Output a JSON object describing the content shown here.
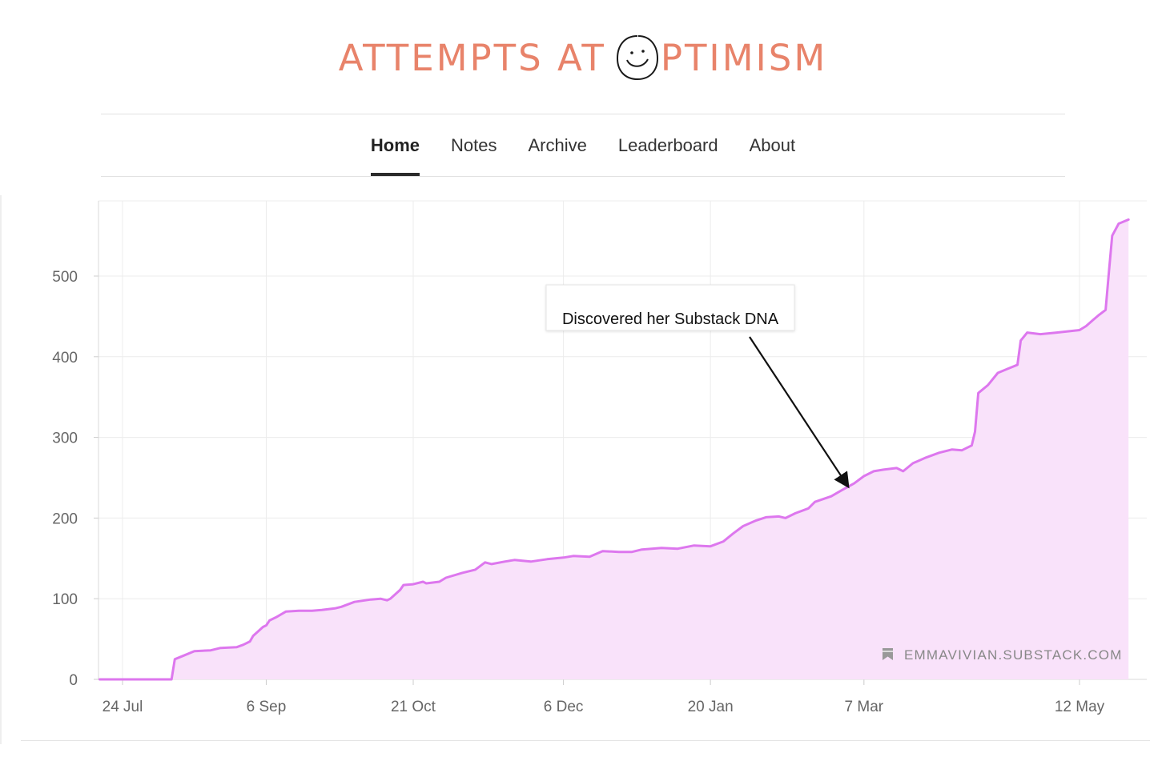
{
  "header": {
    "title_part1": "ATTEMPTS AT",
    "title_part2": "PTIMISM",
    "title_color": "#e8836a",
    "logo_icon": "smiley-face-icon"
  },
  "nav": {
    "items": [
      {
        "label": "Home",
        "active": true
      },
      {
        "label": "Notes",
        "active": false
      },
      {
        "label": "Archive",
        "active": false
      },
      {
        "label": "Leaderboard",
        "active": false
      },
      {
        "label": "About",
        "active": false
      }
    ]
  },
  "chart_data": {
    "type": "area",
    "title": "",
    "xlabel": "",
    "ylabel": "",
    "x_axis": {
      "type": "date",
      "range": [
        "2023-07-24",
        "2024-05-27"
      ],
      "ticks": [
        {
          "date": "2023-07-24",
          "label": "24 Jul"
        },
        {
          "date": "2023-09-06",
          "label": "6 Sep"
        },
        {
          "date": "2023-10-21",
          "label": "21 Oct"
        },
        {
          "date": "2023-12-06",
          "label": "6 Dec"
        },
        {
          "date": "2024-01-20",
          "label": "20 Jan"
        },
        {
          "date": "2024-03-07",
          "label": "7 Mar"
        },
        {
          "date": "2024-05-12",
          "label": "12 May"
        }
      ]
    },
    "y_axis": {
      "range": [
        0,
        595
      ],
      "ticks": [
        {
          "value": 0,
          "label": "0"
        },
        {
          "value": 100,
          "label": "100"
        },
        {
          "value": 200,
          "label": "200"
        },
        {
          "value": 300,
          "label": "300"
        },
        {
          "value": 400,
          "label": "400"
        },
        {
          "value": 500,
          "label": "500"
        }
      ]
    },
    "grid": true,
    "line_color": "#dd77ee",
    "fill_color": "#f9e2fa",
    "series": [
      {
        "points": [
          [
            "2023-07-17",
            0
          ],
          [
            "2023-08-08",
            0
          ],
          [
            "2023-08-09",
            25
          ],
          [
            "2023-08-12",
            30
          ],
          [
            "2023-08-15",
            35
          ],
          [
            "2023-08-20",
            36
          ],
          [
            "2023-08-23",
            39
          ],
          [
            "2023-08-28",
            40
          ],
          [
            "2023-08-30",
            43
          ],
          [
            "2023-09-01",
            47
          ],
          [
            "2023-09-02",
            54
          ],
          [
            "2023-09-05",
            65
          ],
          [
            "2023-09-06",
            67
          ],
          [
            "2023-09-07",
            73
          ],
          [
            "2023-09-09",
            77
          ],
          [
            "2023-09-12",
            84
          ],
          [
            "2023-09-16",
            85
          ],
          [
            "2023-09-20",
            85
          ],
          [
            "2023-09-23",
            86
          ],
          [
            "2023-09-27",
            88
          ],
          [
            "2023-09-29",
            90
          ],
          [
            "2023-10-03",
            96
          ],
          [
            "2023-10-08",
            99
          ],
          [
            "2023-10-11",
            100
          ],
          [
            "2023-10-13",
            98
          ],
          [
            "2023-10-14",
            100
          ],
          [
            "2023-10-17",
            111
          ],
          [
            "2023-10-18",
            117
          ],
          [
            "2023-10-21",
            118
          ],
          [
            "2023-10-24",
            121
          ],
          [
            "2023-10-25",
            119
          ],
          [
            "2023-10-29",
            121
          ],
          [
            "2023-10-31",
            126
          ],
          [
            "2023-11-05",
            132
          ],
          [
            "2023-11-09",
            136
          ],
          [
            "2023-11-12",
            145
          ],
          [
            "2023-11-14",
            143
          ],
          [
            "2023-11-18",
            146
          ],
          [
            "2023-11-21",
            148
          ],
          [
            "2023-11-26",
            146
          ],
          [
            "2023-12-01",
            149
          ],
          [
            "2023-12-06",
            151
          ],
          [
            "2023-12-09",
            153
          ],
          [
            "2023-12-14",
            152
          ],
          [
            "2023-12-18",
            159
          ],
          [
            "2023-12-23",
            158
          ],
          [
            "2023-12-27",
            158
          ],
          [
            "2023-12-30",
            161
          ],
          [
            "2024-01-05",
            163
          ],
          [
            "2024-01-10",
            162
          ],
          [
            "2024-01-15",
            166
          ],
          [
            "2024-01-20",
            165
          ],
          [
            "2024-01-24",
            171
          ],
          [
            "2024-01-27",
            181
          ],
          [
            "2024-01-30",
            190
          ],
          [
            "2024-02-03",
            197
          ],
          [
            "2024-02-06",
            201
          ],
          [
            "2024-02-10",
            202
          ],
          [
            "2024-02-12",
            200
          ],
          [
            "2024-02-15",
            206
          ],
          [
            "2024-02-19",
            212
          ],
          [
            "2024-02-21",
            220
          ],
          [
            "2024-02-26",
            227
          ],
          [
            "2024-02-29",
            234
          ],
          [
            "2024-03-04",
            243
          ],
          [
            "2024-03-07",
            252
          ],
          [
            "2024-03-10",
            258
          ],
          [
            "2024-03-13",
            260
          ],
          [
            "2024-03-17",
            262
          ],
          [
            "2024-03-19",
            258
          ],
          [
            "2024-03-22",
            268
          ],
          [
            "2024-03-26",
            275
          ],
          [
            "2024-03-30",
            281
          ],
          [
            "2024-04-03",
            285
          ],
          [
            "2024-04-06",
            284
          ],
          [
            "2024-04-09",
            290
          ],
          [
            "2024-04-10",
            307
          ],
          [
            "2024-04-11",
            355
          ],
          [
            "2024-04-14",
            365
          ],
          [
            "2024-04-17",
            380
          ],
          [
            "2024-04-20",
            385
          ],
          [
            "2024-04-23",
            390
          ],
          [
            "2024-04-24",
            420
          ],
          [
            "2024-04-26",
            430
          ],
          [
            "2024-04-30",
            428
          ],
          [
            "2024-05-05",
            430
          ],
          [
            "2024-05-12",
            433
          ],
          [
            "2024-05-14",
            438
          ],
          [
            "2024-05-16",
            445
          ],
          [
            "2024-05-18",
            452
          ],
          [
            "2024-05-20",
            458
          ],
          [
            "2024-05-21",
            505
          ],
          [
            "2024-05-22",
            550
          ],
          [
            "2024-05-24",
            565
          ],
          [
            "2024-05-27",
            570
          ]
        ]
      }
    ],
    "annotations": [
      {
        "text": "Discovered her Substack DNA",
        "arrow_to": [
          "2024-03-02",
          240
        ]
      }
    ],
    "watermark": {
      "text": "EMMAVIVIAN.SUBSTACK.COM",
      "icon": "bookmark-icon"
    }
  }
}
